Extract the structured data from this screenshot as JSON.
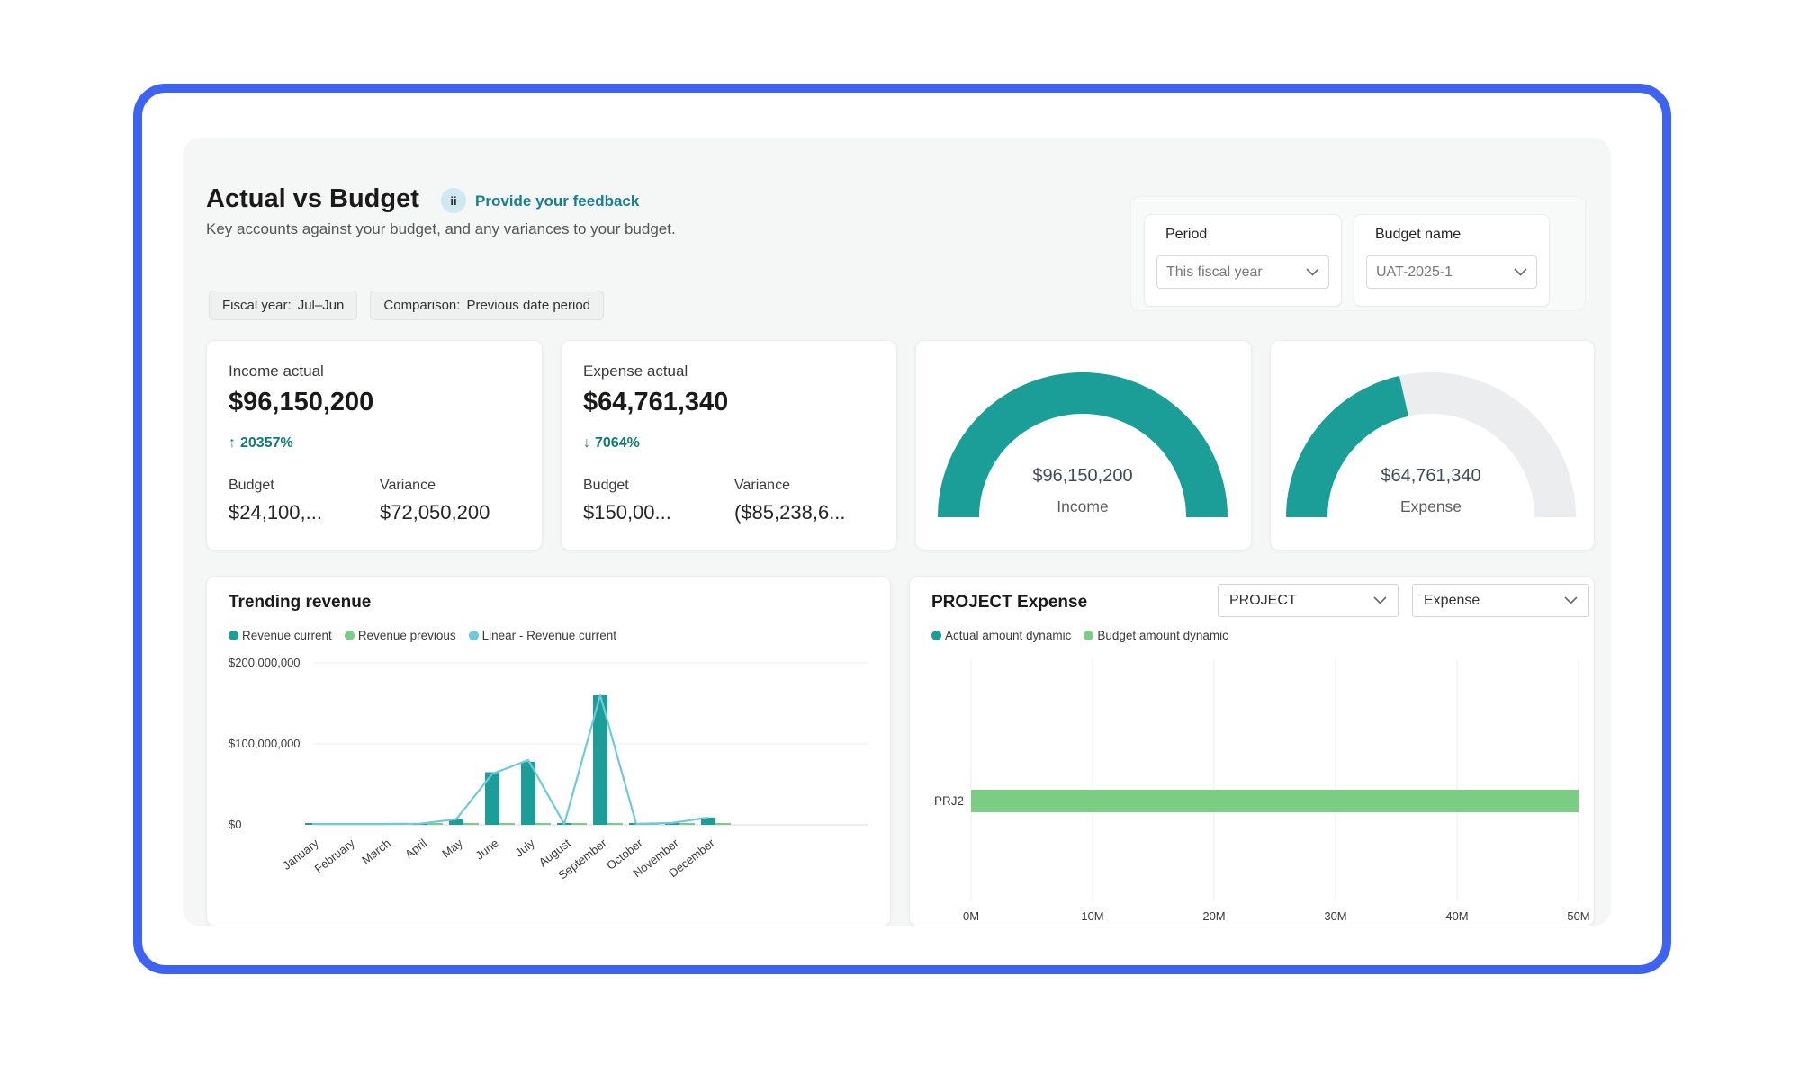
{
  "header": {
    "title": "Actual vs Budget",
    "feedback_icon_glyph": "ii",
    "feedback_link": "Provide your feedback",
    "subtitle": "Key accounts against your budget, and any variances to your budget."
  },
  "filter_panel": {
    "period": {
      "label": "Period",
      "value": "This fiscal year"
    },
    "budget_name": {
      "label": "Budget name",
      "value": "UAT-2025-1"
    }
  },
  "chips": [
    {
      "name": "Fiscal year:",
      "value": "Jul–Jun"
    },
    {
      "name": "Comparison:",
      "value": "Previous date period"
    }
  ],
  "kpi_cards": [
    {
      "title": "Income actual",
      "value": "$96,150,200",
      "change_arrow": "↑",
      "change": "20357%",
      "budget_label": "Budget",
      "budget_value": "$24,100,...",
      "variance_label": "Variance",
      "variance_value": "$72,050,200"
    },
    {
      "title": "Expense actual",
      "value": "$64,761,340",
      "change_arrow": "↓",
      "change": "7064%",
      "budget_label": "Budget",
      "budget_value": "$150,00...",
      "variance_label": "Variance",
      "variance_value": "($85,238,6..."
    }
  ],
  "project_card": {
    "dropdown_dimension": "PROJECT",
    "dropdown_measure": "Expense"
  },
  "colors": {
    "frame_blue": "#3e63f3",
    "teal": "#1b9e97",
    "green": "#7ccd84",
    "light_blue": "#6fc8db",
    "link_teal": "#177e93",
    "change_teal": "#107c76",
    "gauge_track": "#ebedee"
  },
  "chart_data": [
    {
      "type": "gauge",
      "title": "Income",
      "value": 96150200,
      "value_label": "$96,150,200",
      "fill_percent": 100,
      "color": "#1b9e97",
      "track_color": "#ebedee"
    },
    {
      "type": "gauge",
      "title": "Expense",
      "value": 64761340,
      "value_label": "$64,761,340",
      "fill_percent": 43,
      "color": "#1b9e97",
      "track_color": "#ebedee"
    },
    {
      "type": "bar",
      "subtype": "grouped-bars-with-line",
      "title": "Trending revenue",
      "categories": [
        "January",
        "February",
        "March",
        "April",
        "May",
        "June",
        "July",
        "August",
        "September",
        "October",
        "November",
        "December"
      ],
      "series": [
        {
          "name": "Revenue current",
          "type": "bar",
          "color": "#1b9e97",
          "values": [
            2000000,
            400000,
            1200000,
            600000,
            7000000,
            65000000,
            78000000,
            2000000,
            160000000,
            1500000,
            800000,
            9000000
          ]
        },
        {
          "name": "Revenue previous",
          "type": "bar",
          "color": "#7ccd84",
          "values": [
            800000,
            400000,
            600000,
            1200000,
            1200000,
            1800000,
            2200000,
            1800000,
            1800000,
            600000,
            1800000,
            600000
          ]
        },
        {
          "name": "Linear - Revenue current",
          "type": "line",
          "color": "#6fc8db",
          "values": [
            500000,
            700000,
            1000000,
            1500000,
            7000000,
            63000000,
            80000000,
            500000,
            160000000,
            500000,
            2500000,
            9000000
          ]
        }
      ],
      "y_ticks": [
        {
          "v": 0,
          "label": "$0"
        },
        {
          "v": 100000000,
          "label": "$100,000,000"
        },
        {
          "v": 200000000,
          "label": "$200,000,000"
        }
      ],
      "ylim": [
        0,
        200000000
      ],
      "grid": true,
      "legend_position": "top"
    },
    {
      "type": "bar",
      "orientation": "horizontal",
      "title": "PROJECT Expense",
      "categories": [
        "PRJ2"
      ],
      "series": [
        {
          "name": "Actual amount dynamic",
          "color": "#1b9e97",
          "values": [
            0
          ]
        },
        {
          "name": "Budget amount dynamic",
          "color": "#7ccd84",
          "values": [
            50000000
          ]
        }
      ],
      "x_ticks": [
        {
          "v": 0,
          "label": "0M"
        },
        {
          "v": 10000000,
          "label": "10M"
        },
        {
          "v": 20000000,
          "label": "20M"
        },
        {
          "v": 30000000,
          "label": "30M"
        },
        {
          "v": 40000000,
          "label": "40M"
        },
        {
          "v": 50000000,
          "label": "50M"
        }
      ],
      "xlim": [
        0,
        50000000
      ],
      "grid": true,
      "legend_position": "top"
    }
  ]
}
